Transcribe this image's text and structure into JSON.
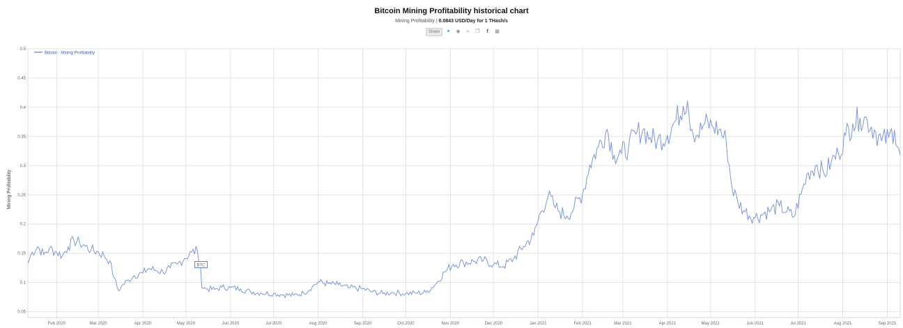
{
  "title": "Bitcoin Mining Profitability historical chart",
  "subtitle_prefix": "Mining Profitability |",
  "subtitle_value": "0.0843 USD/Day for 1 THash/s",
  "share": {
    "share_label": "Share",
    "icons": [
      "twitter-icon",
      "reddit-icon",
      "vk-icon",
      "copy-icon",
      "facebook-icon",
      "pdf-icon"
    ]
  },
  "colors": {
    "line": "#7b96e0",
    "grid": "#e3e3e3",
    "legend": "#3b5fc4"
  },
  "chart_data": {
    "type": "line",
    "title": "Bitcoin Mining Profitability historical chart",
    "xlabel": "",
    "ylabel": "Mining Profitability",
    "legend": "Bitcoin - Mining Profitability",
    "legend_position": "top-left",
    "ylim": [
      0.04,
      0.5
    ],
    "y_ticks": [
      0.05,
      0.1,
      0.15,
      0.2,
      0.25,
      0.3,
      0.35,
      0.4,
      0.45,
      0.5
    ],
    "x_range": [
      "2020-01-12",
      "2021-09-10"
    ],
    "x_ticks": [
      {
        "date": "2020-02-01",
        "label": "Feb 2020"
      },
      {
        "date": "2020-03-01",
        "label": "Mar 2020"
      },
      {
        "date": "2020-04-01",
        "label": "Apr 2020"
      },
      {
        "date": "2020-05-01",
        "label": "May 2020"
      },
      {
        "date": "2020-06-01",
        "label": "Jun 2020"
      },
      {
        "date": "2020-07-01",
        "label": "Jul 2020"
      },
      {
        "date": "2020-08-01",
        "label": "Aug 2020"
      },
      {
        "date": "2020-09-01",
        "label": "Sep 2020"
      },
      {
        "date": "2020-10-01",
        "label": "Oct 2020"
      },
      {
        "date": "2020-11-01",
        "label": "Nov 2020"
      },
      {
        "date": "2020-12-01",
        "label": "Dec 2020"
      },
      {
        "date": "2021-01-01",
        "label": "Jan 2021"
      },
      {
        "date": "2021-02-01",
        "label": "Feb 2021"
      },
      {
        "date": "2021-03-01",
        "label": "Mar 2021"
      },
      {
        "date": "2021-04-01",
        "label": "Apr 2021"
      },
      {
        "date": "2021-05-01",
        "label": "May 2021"
      },
      {
        "date": "2021-06-01",
        "label": "Jun 2021"
      },
      {
        "date": "2021-07-01",
        "label": "Jul 2021"
      },
      {
        "date": "2021-08-01",
        "label": "Aug 2021"
      },
      {
        "date": "2021-09-01",
        "label": "Sep 2021"
      }
    ],
    "annotation": {
      "date": "2020-05-11",
      "value": 0.13,
      "label": "BTC"
    },
    "grid": true,
    "series": [
      {
        "name": "Bitcoin - Mining Profitability",
        "points": [
          [
            "2020-01-12",
            0.133
          ],
          [
            "2020-01-15",
            0.152
          ],
          [
            "2020-01-19",
            0.161
          ],
          [
            "2020-01-23",
            0.148
          ],
          [
            "2020-01-27",
            0.158
          ],
          [
            "2020-02-01",
            0.152
          ],
          [
            "2020-02-05",
            0.146
          ],
          [
            "2020-02-09",
            0.161
          ],
          [
            "2020-02-13",
            0.172
          ],
          [
            "2020-02-17",
            0.168
          ],
          [
            "2020-02-21",
            0.162
          ],
          [
            "2020-02-25",
            0.156
          ],
          [
            "2020-03-01",
            0.152
          ],
          [
            "2020-03-05",
            0.146
          ],
          [
            "2020-03-09",
            0.137
          ],
          [
            "2020-03-12",
            0.108
          ],
          [
            "2020-03-15",
            0.086
          ],
          [
            "2020-03-18",
            0.096
          ],
          [
            "2020-03-22",
            0.104
          ],
          [
            "2020-03-26",
            0.112
          ],
          [
            "2020-04-01",
            0.116
          ],
          [
            "2020-04-05",
            0.124
          ],
          [
            "2020-04-10",
            0.121
          ],
          [
            "2020-04-15",
            0.118
          ],
          [
            "2020-04-20",
            0.125
          ],
          [
            "2020-04-25",
            0.131
          ],
          [
            "2020-04-30",
            0.141
          ],
          [
            "2020-05-05",
            0.152
          ],
          [
            "2020-05-09",
            0.154
          ],
          [
            "2020-05-11",
            0.131
          ],
          [
            "2020-05-12",
            0.092
          ],
          [
            "2020-05-16",
            0.089
          ],
          [
            "2020-05-21",
            0.088
          ],
          [
            "2020-05-26",
            0.092
          ],
          [
            "2020-06-01",
            0.091
          ],
          [
            "2020-06-08",
            0.089
          ],
          [
            "2020-06-15",
            0.084
          ],
          [
            "2020-06-22",
            0.082
          ],
          [
            "2020-07-01",
            0.081
          ],
          [
            "2020-07-08",
            0.079
          ],
          [
            "2020-07-15",
            0.078
          ],
          [
            "2020-07-22",
            0.082
          ],
          [
            "2020-07-28",
            0.093
          ],
          [
            "2020-08-01",
            0.101
          ],
          [
            "2020-08-08",
            0.098
          ],
          [
            "2020-08-15",
            0.096
          ],
          [
            "2020-08-22",
            0.091
          ],
          [
            "2020-09-01",
            0.089
          ],
          [
            "2020-09-08",
            0.084
          ],
          [
            "2020-09-15",
            0.081
          ],
          [
            "2020-09-22",
            0.083
          ],
          [
            "2020-10-01",
            0.081
          ],
          [
            "2020-10-08",
            0.082
          ],
          [
            "2020-10-15",
            0.083
          ],
          [
            "2020-10-22",
            0.098
          ],
          [
            "2020-10-28",
            0.118
          ],
          [
            "2020-11-03",
            0.131
          ],
          [
            "2020-11-10",
            0.134
          ],
          [
            "2020-11-17",
            0.136
          ],
          [
            "2020-11-24",
            0.138
          ],
          [
            "2020-12-01",
            0.131
          ],
          [
            "2020-12-08",
            0.128
          ],
          [
            "2020-12-15",
            0.141
          ],
          [
            "2020-12-22",
            0.162
          ],
          [
            "2020-12-29",
            0.181
          ],
          [
            "2021-01-03",
            0.221
          ],
          [
            "2021-01-08",
            0.248
          ],
          [
            "2021-01-12",
            0.232
          ],
          [
            "2021-01-16",
            0.221
          ],
          [
            "2021-01-21",
            0.214
          ],
          [
            "2021-01-26",
            0.228
          ],
          [
            "2021-02-01",
            0.252
          ],
          [
            "2021-02-06",
            0.301
          ],
          [
            "2021-02-12",
            0.332
          ],
          [
            "2021-02-18",
            0.362
          ],
          [
            "2021-02-23",
            0.318
          ],
          [
            "2021-02-28",
            0.321
          ],
          [
            "2021-03-05",
            0.332
          ],
          [
            "2021-03-10",
            0.354
          ],
          [
            "2021-03-15",
            0.361
          ],
          [
            "2021-03-20",
            0.348
          ],
          [
            "2021-03-25",
            0.342
          ],
          [
            "2021-04-01",
            0.352
          ],
          [
            "2021-04-07",
            0.378
          ],
          [
            "2021-04-12",
            0.402
          ],
          [
            "2021-04-15",
            0.411
          ],
          [
            "2021-04-18",
            0.362
          ],
          [
            "2021-04-22",
            0.352
          ],
          [
            "2021-04-27",
            0.372
          ],
          [
            "2021-05-02",
            0.368
          ],
          [
            "2021-05-07",
            0.362
          ],
          [
            "2021-05-12",
            0.341
          ],
          [
            "2021-05-16",
            0.262
          ],
          [
            "2021-05-20",
            0.238
          ],
          [
            "2021-05-25",
            0.221
          ],
          [
            "2021-06-01",
            0.211
          ],
          [
            "2021-06-07",
            0.218
          ],
          [
            "2021-06-12",
            0.224
          ],
          [
            "2021-06-18",
            0.231
          ],
          [
            "2021-06-23",
            0.221
          ],
          [
            "2021-06-28",
            0.212
          ],
          [
            "2021-07-03",
            0.251
          ],
          [
            "2021-07-08",
            0.288
          ],
          [
            "2021-07-14",
            0.301
          ],
          [
            "2021-07-19",
            0.286
          ],
          [
            "2021-07-24",
            0.306
          ],
          [
            "2021-07-29",
            0.321
          ],
          [
            "2021-08-03",
            0.352
          ],
          [
            "2021-08-08",
            0.372
          ],
          [
            "2021-08-13",
            0.382
          ],
          [
            "2021-08-18",
            0.378
          ],
          [
            "2021-08-23",
            0.361
          ],
          [
            "2021-08-28",
            0.342
          ],
          [
            "2021-09-02",
            0.348
          ],
          [
            "2021-09-06",
            0.361
          ],
          [
            "2021-09-10",
            0.318
          ]
        ]
      }
    ]
  }
}
